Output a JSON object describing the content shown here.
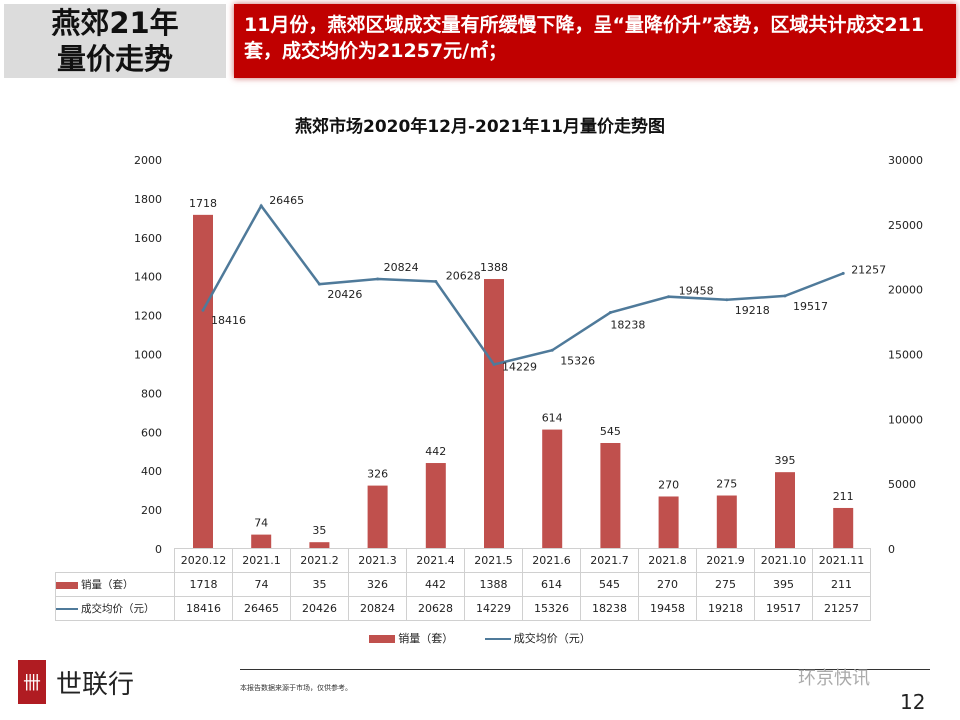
{
  "header": {
    "title_line1": "燕郊21年",
    "title_line2": "量价走势",
    "summary": "11月份，燕郊区域成交量有所缓慢下降，呈“量降价升”态势，区域共计成交211套，成交均价为21257元/㎡；"
  },
  "chart_data": {
    "type": "bar+line",
    "title": "燕郊市场2020年12月-2021年11月量价走势图",
    "categories": [
      "2020.12",
      "2021.1",
      "2021.2",
      "2021.3",
      "2021.4",
      "2021.5",
      "2021.6",
      "2021.7",
      "2021.8",
      "2021.9",
      "2021.10",
      "2021.11"
    ],
    "series": [
      {
        "name": "销量（套）",
        "type": "bar",
        "axis": "left",
        "color": "#c0504d",
        "values": [
          1718,
          74,
          35,
          326,
          442,
          1388,
          614,
          545,
          270,
          275,
          395,
          211
        ]
      },
      {
        "name": "成交均价（元）",
        "type": "line",
        "axis": "right",
        "color": "#4f7a9a",
        "values": [
          18416,
          26465,
          20426,
          20824,
          20628,
          14229,
          15326,
          18238,
          19458,
          19218,
          19517,
          21257
        ]
      }
    ],
    "left_axis": {
      "ylim": [
        0,
        2000
      ],
      "ticks": [
        0,
        200,
        400,
        600,
        800,
        1000,
        1200,
        1400,
        1600,
        1800,
        2000
      ]
    },
    "right_axis": {
      "ylim": [
        0,
        30000
      ],
      "ticks": [
        0,
        5000,
        10000,
        15000,
        20000,
        25000,
        30000
      ]
    },
    "grid": false,
    "legend": "bottom",
    "data_table": true
  },
  "footer": {
    "brand": "世联行",
    "logo_glyph": "卌",
    "source": "本报告数据来源于市场，仅供参考。",
    "watermark": "环京快讯",
    "page": "12"
  }
}
